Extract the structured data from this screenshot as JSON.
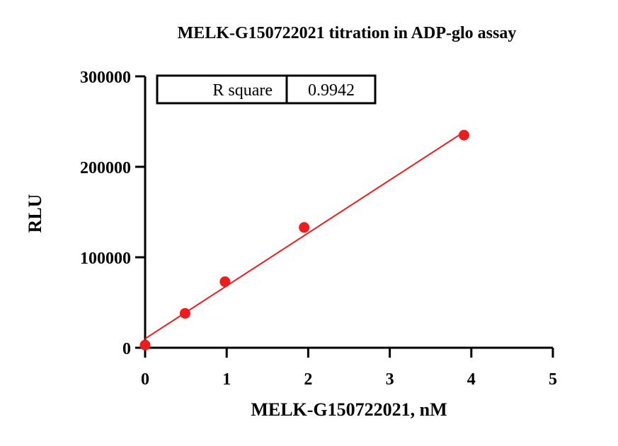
{
  "chart_data": {
    "type": "scatter",
    "title": "MELK-G150722021 titration in  ADP-glo assay",
    "xlabel": "MELK-G150722021, nM",
    "ylabel": "RLU",
    "xlim": [
      0,
      5
    ],
    "ylim": [
      0,
      300000
    ],
    "x_ticks": [
      "0",
      "1",
      "2",
      "3",
      "4",
      "5"
    ],
    "y_ticks": [
      "0",
      "100000",
      "200000",
      "300000"
    ],
    "x_tick_values": [
      0,
      1,
      2,
      3,
      4,
      5
    ],
    "y_tick_values": [
      0,
      100000,
      200000,
      300000
    ],
    "grid": false,
    "series": [
      {
        "x": [
          0,
          0.49,
          0.98,
          1.95,
          3.91
        ],
        "y": [
          3000,
          38000,
          73000,
          133000,
          235000
        ],
        "color": "#ee1c1c",
        "fit_line": {
          "x": [
            0,
            3.91
          ],
          "y": [
            10000,
            238500
          ]
        }
      }
    ],
    "stats_table": {
      "label": "R square",
      "value": "0.9942"
    }
  },
  "colors": {
    "series": "#ee1c1c",
    "axis": "#000000"
  }
}
